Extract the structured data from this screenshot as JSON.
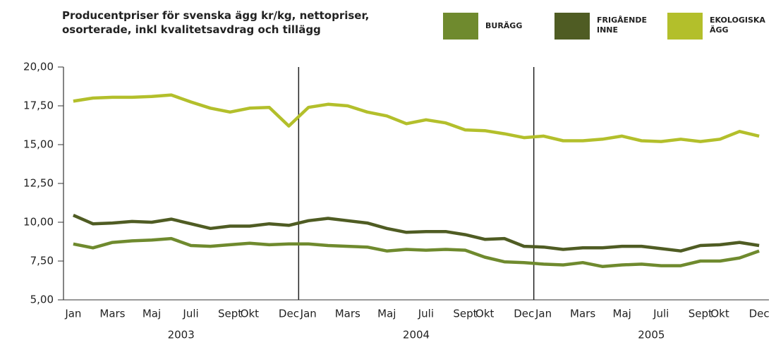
{
  "chart_data": {
    "type": "line",
    "title": "Producentpriser för svenska ägg kr/kg, nettopriser, osorterade, inkl kvalitetsavdrag och tillägg",
    "categories": [
      "Jan",
      null,
      "Mars",
      null,
      "Maj",
      null,
      "Juli",
      null,
      "Sept",
      "Okt",
      null,
      "Dec",
      "Jan",
      null,
      "Mars",
      null,
      "Maj",
      null,
      "Juli",
      null,
      "Sept",
      "Okt",
      null,
      "Dec",
      "Jan",
      null,
      "Mars",
      null,
      "Maj",
      null,
      "Juli",
      null,
      "Sept",
      "Okt",
      null,
      "Dec"
    ],
    "year_groups": [
      "2003",
      "2004",
      "2005"
    ],
    "ylim": [
      5,
      20
    ],
    "yticks": [
      {
        "value": 5,
        "label": "5,00"
      },
      {
        "value": 7.5,
        "label": "7,50"
      },
      {
        "value": 10,
        "label": "10,00"
      },
      {
        "value": 12.5,
        "label": "12,50"
      },
      {
        "value": 15,
        "label": "15,00"
      },
      {
        "value": 17.5,
        "label": "17,50"
      },
      {
        "value": 20,
        "label": "20,00"
      }
    ],
    "series": [
      {
        "name": "BURÄGG",
        "color": "#6f8a2e",
        "values": [
          8.6,
          8.35,
          8.7,
          8.8,
          8.85,
          8.95,
          8.5,
          8.45,
          8.55,
          8.65,
          8.55,
          8.6,
          8.6,
          8.5,
          8.45,
          8.4,
          8.15,
          8.25,
          8.2,
          8.25,
          8.2,
          7.75,
          7.45,
          7.4,
          7.3,
          7.25,
          7.4,
          7.15,
          7.25,
          7.3,
          7.2,
          7.2,
          7.5,
          7.5,
          7.7,
          8.15
        ]
      },
      {
        "name": "FRIGÅENDE INNE",
        "color": "#4f5c23",
        "values": [
          10.45,
          9.9,
          9.95,
          10.05,
          10.0,
          10.2,
          9.9,
          9.6,
          9.75,
          9.75,
          9.9,
          9.8,
          10.1,
          10.25,
          10.1,
          9.95,
          9.6,
          9.35,
          9.4,
          9.4,
          9.2,
          8.9,
          8.95,
          8.45,
          8.4,
          8.25,
          8.35,
          8.35,
          8.45,
          8.45,
          8.3,
          8.15,
          8.5,
          8.55,
          8.7,
          8.5
        ]
      },
      {
        "name": "EKOLOGISKA ÄGG",
        "color": "#b3bf2b",
        "values": [
          17.8,
          18.0,
          18.05,
          18.05,
          18.1,
          18.2,
          17.75,
          17.35,
          17.1,
          17.35,
          17.4,
          16.2,
          17.4,
          17.6,
          17.5,
          17.1,
          16.85,
          16.35,
          16.6,
          16.4,
          15.95,
          15.9,
          15.7,
          15.45,
          15.55,
          15.25,
          15.25,
          15.35,
          15.55,
          15.25,
          15.2,
          15.35,
          15.2,
          15.35,
          15.85,
          15.55
        ]
      }
    ]
  }
}
